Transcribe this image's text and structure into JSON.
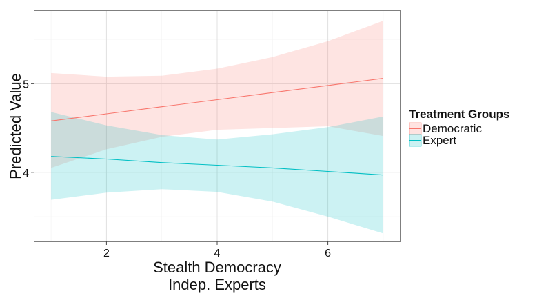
{
  "chart_data": {
    "type": "line",
    "title": "",
    "xlabel": [
      "Stealth Democracy",
      "Indep. Experts"
    ],
    "ylabel": "Predicted Value",
    "xlim": [
      0.7,
      7.3
    ],
    "ylim": [
      3.22,
      5.82
    ],
    "x_ticks": [
      2,
      4,
      6
    ],
    "y_ticks": [
      4,
      5
    ],
    "grid": true,
    "legend": {
      "title": "Treatment Groups",
      "position": "right"
    },
    "series": [
      {
        "name": "Democratic",
        "color": "#F8766D",
        "x": [
          1,
          2,
          3,
          4,
          5,
          6,
          7
        ],
        "y": [
          4.58,
          4.66,
          4.74,
          4.82,
          4.9,
          4.98,
          5.06
        ],
        "lower": [
          4.05,
          4.26,
          4.4,
          4.48,
          4.5,
          4.52,
          4.41
        ],
        "upper": [
          5.12,
          5.08,
          5.09,
          5.17,
          5.3,
          5.48,
          5.71
        ]
      },
      {
        "name": "Expert",
        "color": "#00BFC4",
        "x": [
          1,
          2,
          3,
          4,
          5,
          6,
          7
        ],
        "y": [
          4.18,
          4.15,
          4.11,
          4.08,
          4.05,
          4.01,
          3.97
        ],
        "lower": [
          3.69,
          3.77,
          3.81,
          3.78,
          3.67,
          3.5,
          3.31
        ],
        "upper": [
          4.68,
          4.53,
          4.42,
          4.37,
          4.43,
          4.51,
          4.63
        ]
      }
    ]
  }
}
